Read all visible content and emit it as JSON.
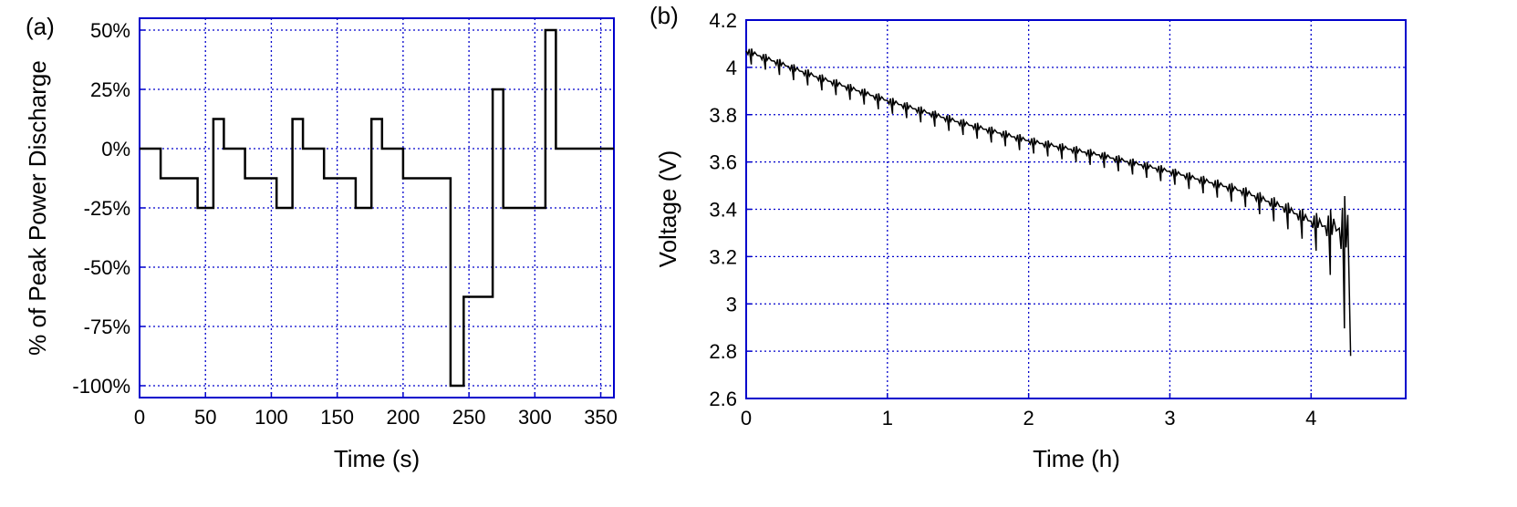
{
  "colors": {
    "frame": "#0000cc",
    "grid": "#0000cc",
    "line": "#000000",
    "background": "#ffffff"
  },
  "chart_data": [
    {
      "type": "line",
      "panel_label": "(a)",
      "title": "",
      "xlabel": "Time (s)",
      "ylabel": "% of Peak Power Discharge",
      "xlim": [
        0,
        360
      ],
      "ylim": [
        -105,
        55
      ],
      "xticks": [
        0,
        50,
        100,
        150,
        200,
        250,
        300,
        350
      ],
      "xtick_labels": [
        "0",
        "50",
        "100",
        "150",
        "200",
        "250",
        "300",
        "350"
      ],
      "yticks": [
        -100,
        -75,
        -50,
        -25,
        0,
        25,
        50
      ],
      "ytick_labels": [
        "-100%",
        "-75%",
        "-50%",
        "-25%",
        "0%",
        "25%",
        "50%"
      ],
      "grid": true,
      "legend": "none",
      "series": [
        {
          "step": true,
          "x": [
            0,
            16,
            44,
            56,
            64,
            80,
            104,
            116,
            124,
            140,
            164,
            176,
            184,
            200,
            236,
            246,
            268,
            276,
            308,
            316,
            360
          ],
          "y": [
            0,
            -12.5,
            -25,
            12.5,
            0,
            -12.5,
            -25,
            12.5,
            0,
            -12.5,
            -25,
            12.5,
            0,
            -12.5,
            -100,
            -62.5,
            25,
            -25,
            50,
            0,
            0
          ]
        }
      ]
    },
    {
      "type": "line",
      "panel_label": "(b)",
      "title": "",
      "xlabel": "Time (h)",
      "ylabel": "Voltage (V)",
      "xlim": [
        0,
        4.67
      ],
      "ylim": [
        2.6,
        4.2
      ],
      "xticks": [
        0,
        1,
        2,
        3,
        4
      ],
      "xtick_labels": [
        "0",
        "1",
        "2",
        "3",
        "4"
      ],
      "yticks": [
        2.6,
        2.8,
        3.0,
        3.2,
        3.4,
        3.6,
        3.8,
        4.0,
        4.2
      ],
      "ytick_labels": [
        "2.6",
        "2.8",
        "3",
        "3.2",
        "3.4",
        "3.6",
        "3.8",
        "4",
        "4.2"
      ],
      "grid": true,
      "legend": "none",
      "series": [
        {
          "x": [
            0,
            0.5,
            1.0,
            1.5,
            2.0,
            2.5,
            3.0,
            3.5,
            3.8,
            4.0,
            4.1,
            4.2,
            4.27
          ],
          "y": [
            4.07,
            3.96,
            3.86,
            3.77,
            3.69,
            3.63,
            3.56,
            3.48,
            3.41,
            3.35,
            3.33,
            3.32,
            3.3
          ],
          "cycle_period_h": 0.1,
          "dip_depth_v": [
            0.05,
            0.05,
            0.05,
            0.05,
            0.05,
            0.05,
            0.05,
            0.06,
            0.08,
            0.1,
            0.15,
            0.3,
            0.52
          ],
          "final_x": 4.28,
          "final_y": 2.78
        }
      ]
    }
  ]
}
